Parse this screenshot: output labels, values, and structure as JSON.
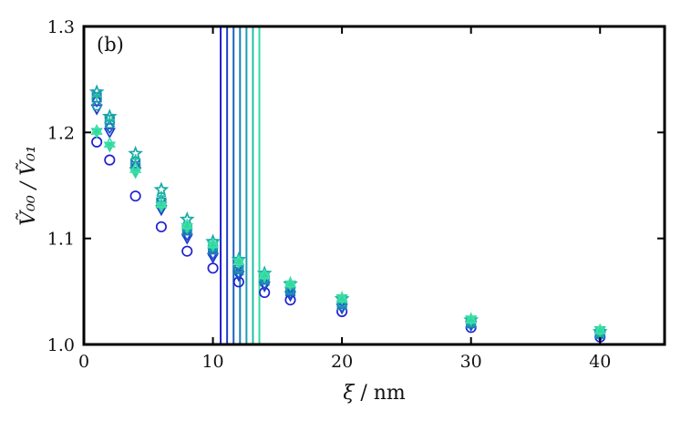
{
  "chart_data": {
    "type": "scatter",
    "panel_label": "(b)",
    "xlabel_symbol": "ξ",
    "xlabel_unit": " / nm",
    "ylabel": "Ṽ₀₀ / Ṽ₀₁",
    "xlim": [
      0,
      45
    ],
    "ylim": [
      1.0,
      1.3
    ],
    "xticks": [
      0,
      10,
      20,
      30,
      40
    ],
    "yticks": [
      "1.0",
      "1.1",
      "1.2",
      "1.3"
    ],
    "grid": false,
    "legend": "none",
    "x": [
      1,
      2,
      4,
      6,
      8,
      10,
      12,
      14,
      16,
      20,
      30,
      40
    ],
    "vertical_lines": [
      {
        "x": 10.6,
        "color": "#1f1fd0"
      },
      {
        "x": 11.1,
        "color": "#2040c8"
      },
      {
        "x": 11.6,
        "color": "#2060c0"
      },
      {
        "x": 12.1,
        "color": "#1a80b8"
      },
      {
        "x": 12.6,
        "color": "#1aa0b0"
      },
      {
        "x": 13.1,
        "color": "#20c0a0"
      },
      {
        "x": 13.6,
        "color": "#30dca0"
      }
    ],
    "series": [
      {
        "marker": "circle",
        "color": "#1f1fd0",
        "values": [
          1.191,
          1.174,
          1.14,
          1.111,
          1.088,
          1.072,
          1.059,
          1.049,
          1.042,
          1.031,
          1.016,
          1.007
        ]
      },
      {
        "marker": "triangle-down",
        "color": "#2038d0",
        "values": [
          1.222,
          1.2,
          1.163,
          1.127,
          1.1,
          1.082,
          1.065,
          1.055,
          1.046,
          1.034,
          1.018,
          1.008
        ]
      },
      {
        "marker": "diamond",
        "color": "#2050c8",
        "values": [
          1.23,
          1.205,
          1.168,
          1.131,
          1.104,
          1.086,
          1.068,
          1.058,
          1.049,
          1.036,
          1.019,
          1.009
        ]
      },
      {
        "marker": "x",
        "color": "#2068c0",
        "values": [
          1.236,
          1.21,
          1.17,
          1.133,
          1.106,
          1.088,
          1.07,
          1.06,
          1.05,
          1.037,
          1.02,
          1.01
        ]
      },
      {
        "marker": "square",
        "color": "#1a80b8",
        "values": [
          1.233,
          1.212,
          1.171,
          1.134,
          1.108,
          1.09,
          1.071,
          1.061,
          1.051,
          1.038,
          1.02,
          1.01
        ]
      },
      {
        "marker": "pentagon",
        "color": "#1898b0",
        "values": [
          1.225,
          1.208,
          1.168,
          1.135,
          1.11,
          1.092,
          1.072,
          1.062,
          1.052,
          1.039,
          1.021,
          1.011
        ]
      },
      {
        "marker": "star",
        "color": "#18aaa8",
        "values": [
          1.238,
          1.215,
          1.18,
          1.146,
          1.118,
          1.097,
          1.08,
          1.067,
          1.057,
          1.043,
          1.023,
          1.012
        ]
      },
      {
        "marker": "plus",
        "color": "#20c0a0",
        "values": [
          1.234,
          1.212,
          1.175,
          1.14,
          1.113,
          1.094,
          1.077,
          1.065,
          1.056,
          1.042,
          1.022,
          1.012
        ]
      },
      {
        "marker": "triangle-down-filled",
        "color": "#30d8a0",
        "values": [
          1.2,
          1.187,
          1.162,
          1.13,
          1.11,
          1.093,
          1.077,
          1.064,
          1.056,
          1.043,
          1.023,
          1.013
        ]
      },
      {
        "marker": "triangle-up",
        "color": "#40e0a8",
        "values": [
          1.202,
          1.19,
          1.166,
          1.133,
          1.113,
          1.095,
          1.079,
          1.066,
          1.058,
          1.044,
          1.024,
          1.014
        ]
      }
    ]
  }
}
